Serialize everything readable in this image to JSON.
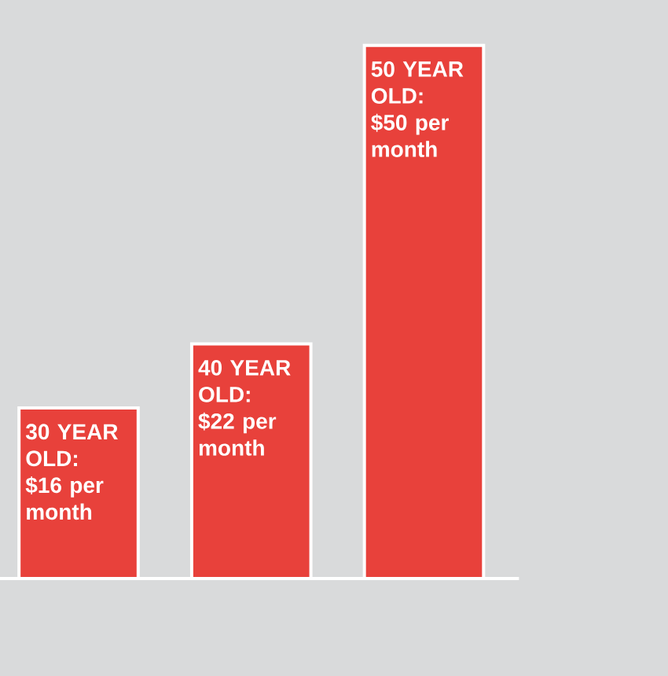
{
  "chart_data": {
    "type": "bar",
    "categories": [
      null,
      null,
      null
    ],
    "values": [
      16,
      22,
      50
    ],
    "value_labels": [
      "30 YEAR OLD: $16 per month",
      "40 YEAR OLD: $22 per month",
      "50 YEAR OLD: $50 per month"
    ],
    "color": "#e8413b"
  }
}
